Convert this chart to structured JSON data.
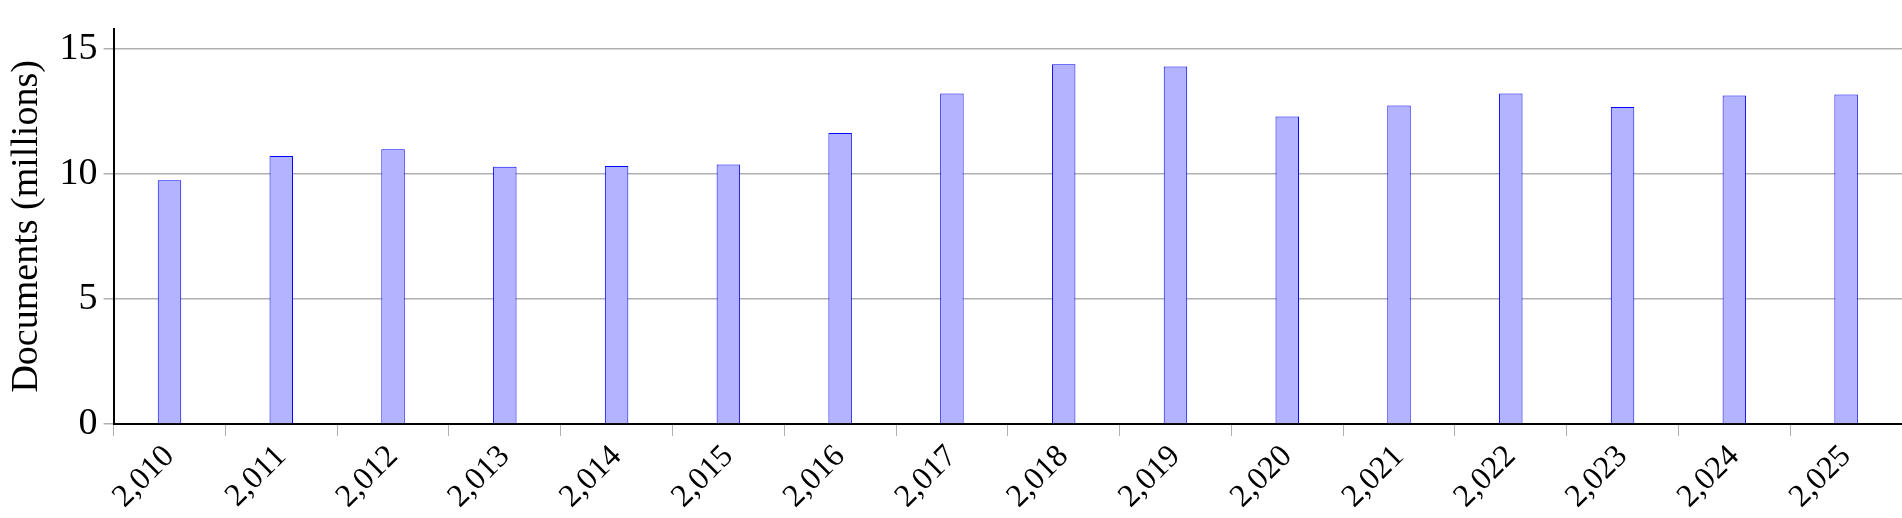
{
  "chart_data": {
    "type": "bar",
    "ylabel": "Documents (millions)",
    "categories": [
      "2,010",
      "2,011",
      "2,012",
      "2,013",
      "2,014",
      "2,015",
      "2,016",
      "2,017",
      "2,018",
      "2,019",
      "2,020",
      "2,021",
      "2,022",
      "2,023",
      "2,024",
      "2,025"
    ],
    "values": [
      9.74,
      10.71,
      10.98,
      10.28,
      10.31,
      10.37,
      11.63,
      13.21,
      14.38,
      14.29,
      12.29,
      12.73,
      13.21,
      12.67,
      13.13,
      13.17
    ],
    "color": "#b3b3ff",
    "ylim": [
      0,
      15.8
    ],
    "yticks": [
      0,
      5,
      10,
      15
    ],
    "grid": "y",
    "legend": false
  }
}
